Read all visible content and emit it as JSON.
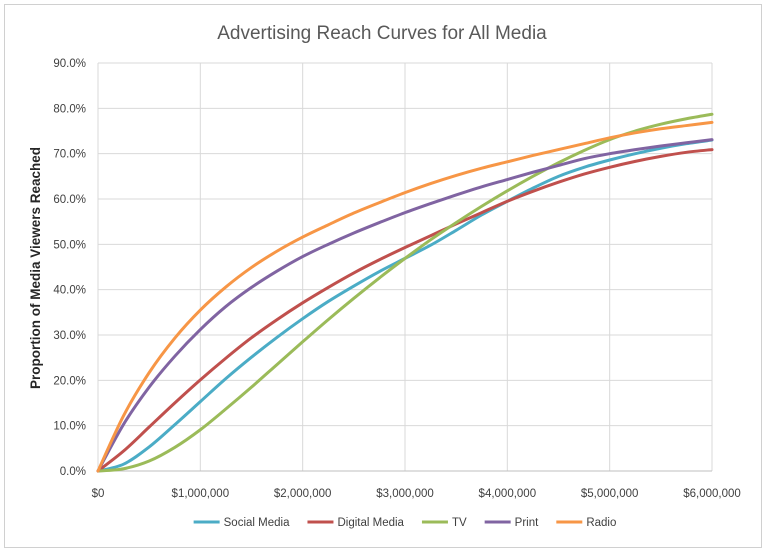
{
  "chart_data": {
    "type": "line",
    "title": "Advertising Reach Curves for All Media",
    "xlabel": "",
    "ylabel": "Proportion of Media Viewers Reached",
    "xlim": [
      0,
      6000000
    ],
    "ylim": [
      0,
      0.9
    ],
    "x_ticks": [
      0,
      1000000,
      2000000,
      3000000,
      4000000,
      5000000,
      6000000
    ],
    "x_tick_labels": [
      "$0",
      "$1,000,000",
      "$2,000,000",
      "$3,000,000",
      "$4,000,000",
      "$5,000,000",
      "$6,000,000"
    ],
    "y_ticks": [
      0,
      0.1,
      0.2,
      0.3,
      0.4,
      0.5,
      0.6,
      0.7,
      0.8,
      0.9
    ],
    "y_tick_labels": [
      "0.0%",
      "10.0%",
      "20.0%",
      "30.0%",
      "40.0%",
      "50.0%",
      "60.0%",
      "70.0%",
      "80.0%",
      "90.0%"
    ],
    "grid": true,
    "legend_position": "bottom",
    "x": [
      0,
      250000,
      500000,
      750000,
      1000000,
      1250000,
      1500000,
      1750000,
      2000000,
      2250000,
      2500000,
      2750000,
      3000000,
      3250000,
      3500000,
      3750000,
      4000000,
      4250000,
      4500000,
      4750000,
      5000000,
      5250000,
      5500000,
      5750000,
      6000000
    ],
    "series": [
      {
        "name": "Social Media",
        "color": "#4BACC6",
        "values": [
          0,
          0.015,
          0.053,
          0.102,
          0.153,
          0.204,
          0.251,
          0.295,
          0.336,
          0.374,
          0.408,
          0.44,
          0.469,
          0.498,
          0.531,
          0.565,
          0.595,
          0.624,
          0.65,
          0.67,
          0.686,
          0.7,
          0.712,
          0.722,
          0.73
        ]
      },
      {
        "name": "Digital Media",
        "color": "#C0504D",
        "values": [
          0,
          0.044,
          0.097,
          0.15,
          0.201,
          0.249,
          0.294,
          0.334,
          0.371,
          0.405,
          0.437,
          0.466,
          0.493,
          0.519,
          0.545,
          0.57,
          0.595,
          0.617,
          0.637,
          0.655,
          0.67,
          0.683,
          0.694,
          0.703,
          0.709
        ]
      },
      {
        "name": "TV",
        "color": "#9BBB59",
        "values": [
          0,
          0.005,
          0.022,
          0.052,
          0.091,
          0.137,
          0.185,
          0.235,
          0.285,
          0.334,
          0.381,
          0.426,
          0.469,
          0.51,
          0.548,
          0.584,
          0.618,
          0.65,
          0.68,
          0.707,
          0.731,
          0.75,
          0.765,
          0.777,
          0.787
        ]
      },
      {
        "name": "Print",
        "color": "#8064A2",
        "values": [
          0,
          0.103,
          0.185,
          0.253,
          0.312,
          0.363,
          0.405,
          0.441,
          0.473,
          0.5,
          0.525,
          0.548,
          0.57,
          0.59,
          0.609,
          0.627,
          0.643,
          0.659,
          0.674,
          0.689,
          0.7,
          0.709,
          0.717,
          0.724,
          0.731
        ]
      },
      {
        "name": "Radio",
        "color": "#F79646",
        "values": [
          0,
          0.122,
          0.217,
          0.293,
          0.355,
          0.406,
          0.449,
          0.485,
          0.516,
          0.543,
          0.569,
          0.592,
          0.614,
          0.634,
          0.652,
          0.668,
          0.682,
          0.696,
          0.709,
          0.722,
          0.735,
          0.746,
          0.755,
          0.762,
          0.769
        ]
      }
    ]
  }
}
